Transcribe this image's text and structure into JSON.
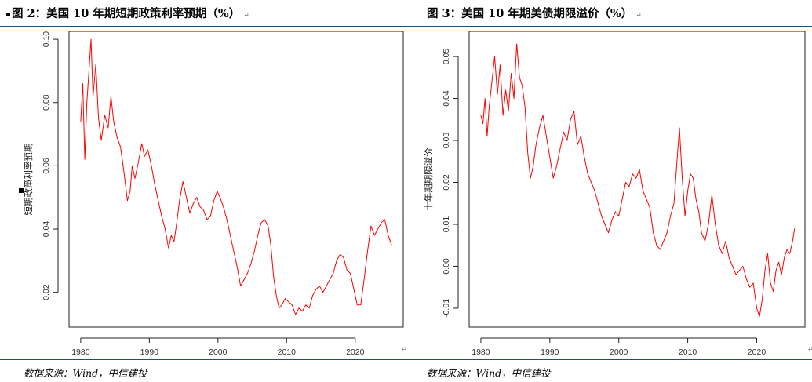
{
  "figures": [
    {
      "title": "图 2：美国 10 年期短期政策利率预期（%）",
      "source": "数据来源：Wind，中信建投",
      "ret_mark": "↵"
    },
    {
      "title": "图 3：美国 10 年期美债期限溢价（%）",
      "source": "数据来源：Wind，中信建投",
      "ret_mark": "↵"
    }
  ],
  "chart_data": [
    {
      "type": "line",
      "title": "",
      "xlabel": "",
      "ylabel": "短期政策利率预期",
      "xlim": [
        1978.3,
        2027.0
      ],
      "ylim": [
        0.009,
        0.1025
      ],
      "xticks": [
        1980,
        1990,
        2000,
        2010,
        2020
      ],
      "yticks": [
        0.02,
        0.04,
        0.06,
        0.08,
        0.1
      ],
      "ytick_labels": [
        "0.02",
        "0.04",
        "0.06",
        "0.08",
        "0.10"
      ],
      "grid": false,
      "color": "#ff0000",
      "series": [
        {
          "x": [
            1980.0,
            1980.3,
            1980.6,
            1980.9,
            1981.2,
            1981.5,
            1981.8,
            1982.2,
            1982.6,
            1983.0,
            1983.5,
            1984.0,
            1984.4,
            1984.8,
            1985.3,
            1985.8,
            1986.3,
            1986.8,
            1987.2,
            1987.5,
            1987.9,
            1988.4,
            1988.9,
            1989.3,
            1989.8,
            1990.3,
            1990.8,
            1991.3,
            1991.8,
            1992.3,
            1992.8,
            1993.2,
            1993.6,
            1994.0,
            1994.4,
            1994.9,
            1995.4,
            1995.9,
            1996.4,
            1996.9,
            1997.4,
            1997.9,
            1998.4,
            1998.9,
            1999.4,
            1999.9,
            2000.3,
            2000.8,
            2001.3,
            2001.8,
            2002.3,
            2002.8,
            2003.3,
            2003.8,
            2004.3,
            2004.8,
            2005.3,
            2005.8,
            2006.3,
            2006.8,
            2007.3,
            2007.7,
            2008.1,
            2008.5,
            2008.9,
            2009.3,
            2009.8,
            2010.3,
            2010.8,
            2011.3,
            2011.8,
            2012.3,
            2012.8,
            2013.3,
            2013.8,
            2014.3,
            2014.8,
            2015.3,
            2015.8,
            2016.3,
            2016.8,
            2017.3,
            2017.8,
            2018.3,
            2018.8,
            2019.3,
            2019.8,
            2020.3,
            2020.8,
            2021.3,
            2021.8,
            2022.3,
            2022.8,
            2023.3,
            2023.8,
            2024.3,
            2024.8,
            2025.3
          ],
          "y": [
            0.074,
            0.086,
            0.062,
            0.08,
            0.09,
            0.1,
            0.082,
            0.092,
            0.075,
            0.068,
            0.076,
            0.072,
            0.082,
            0.074,
            0.069,
            0.066,
            0.058,
            0.049,
            0.052,
            0.06,
            0.056,
            0.061,
            0.067,
            0.063,
            0.065,
            0.06,
            0.054,
            0.049,
            0.044,
            0.04,
            0.034,
            0.038,
            0.036,
            0.042,
            0.049,
            0.055,
            0.05,
            0.045,
            0.048,
            0.05,
            0.047,
            0.046,
            0.043,
            0.044,
            0.049,
            0.052,
            0.05,
            0.047,
            0.043,
            0.038,
            0.033,
            0.028,
            0.022,
            0.024,
            0.026,
            0.029,
            0.033,
            0.038,
            0.042,
            0.043,
            0.041,
            0.035,
            0.025,
            0.019,
            0.015,
            0.016,
            0.018,
            0.017,
            0.016,
            0.013,
            0.015,
            0.014,
            0.016,
            0.015,
            0.019,
            0.021,
            0.022,
            0.02,
            0.022,
            0.024,
            0.026,
            0.03,
            0.032,
            0.031,
            0.027,
            0.026,
            0.021,
            0.016,
            0.016,
            0.024,
            0.033,
            0.041,
            0.038,
            0.04,
            0.042,
            0.043,
            0.038,
            0.035
          ]
        }
      ]
    },
    {
      "type": "line",
      "title": "",
      "xlabel": "",
      "ylabel": "十年期期限溢价",
      "xlim": [
        1978.3,
        2027.0
      ],
      "ylim": [
        -0.0145,
        0.056
      ],
      "xticks": [
        1980,
        1990,
        2000,
        2010,
        2020
      ],
      "yticks": [
        -0.01,
        0.0,
        0.01,
        0.02,
        0.03,
        0.04,
        0.05
      ],
      "ytick_labels": [
        "-0.01",
        "0.00",
        "0.01",
        "0.02",
        "0.03",
        "0.04",
        "0.05"
      ],
      "grid": false,
      "color": "#ff0000",
      "series": [
        {
          "x": [
            1980.0,
            1980.3,
            1980.6,
            1980.9,
            1981.2,
            1981.6,
            1982.0,
            1982.4,
            1982.8,
            1983.2,
            1983.6,
            1984.0,
            1984.4,
            1984.8,
            1985.2,
            1985.6,
            1986.0,
            1986.4,
            1986.8,
            1987.2,
            1987.6,
            1988.0,
            1988.5,
            1989.0,
            1989.5,
            1990.0,
            1990.5,
            1991.0,
            1991.5,
            1992.0,
            1992.5,
            1993.0,
            1993.5,
            1994.0,
            1994.5,
            1995.0,
            1995.5,
            1996.0,
            1996.5,
            1997.0,
            1997.5,
            1998.0,
            1998.5,
            1999.0,
            1999.5,
            2000.0,
            2000.5,
            2001.0,
            2001.5,
            2002.0,
            2002.5,
            2003.0,
            2003.5,
            2004.0,
            2004.5,
            2005.0,
            2005.5,
            2006.0,
            2006.5,
            2007.0,
            2007.5,
            2008.0,
            2008.4,
            2008.8,
            2009.2,
            2009.6,
            2010.0,
            2010.4,
            2010.8,
            2011.2,
            2011.6,
            2012.0,
            2012.5,
            2013.0,
            2013.5,
            2014.0,
            2014.5,
            2015.0,
            2015.5,
            2016.0,
            2016.5,
            2017.0,
            2017.5,
            2018.0,
            2018.5,
            2019.0,
            2019.5,
            2020.0,
            2020.4,
            2020.8,
            2021.2,
            2021.6,
            2022.0,
            2022.4,
            2022.8,
            2023.2,
            2023.6,
            2024.0,
            2024.4,
            2024.8,
            2025.2,
            2025.5
          ],
          "y": [
            0.036,
            0.034,
            0.04,
            0.031,
            0.038,
            0.044,
            0.05,
            0.041,
            0.048,
            0.036,
            0.042,
            0.037,
            0.046,
            0.04,
            0.053,
            0.045,
            0.043,
            0.038,
            0.027,
            0.021,
            0.024,
            0.029,
            0.033,
            0.036,
            0.031,
            0.026,
            0.021,
            0.024,
            0.028,
            0.032,
            0.03,
            0.035,
            0.037,
            0.029,
            0.031,
            0.026,
            0.022,
            0.02,
            0.018,
            0.015,
            0.012,
            0.01,
            0.008,
            0.011,
            0.013,
            0.012,
            0.016,
            0.02,
            0.019,
            0.022,
            0.021,
            0.023,
            0.018,
            0.016,
            0.014,
            0.008,
            0.005,
            0.004,
            0.006,
            0.008,
            0.012,
            0.015,
            0.024,
            0.033,
            0.021,
            0.012,
            0.018,
            0.022,
            0.021,
            0.016,
            0.013,
            0.008,
            0.006,
            0.01,
            0.017,
            0.01,
            0.005,
            0.003,
            0.006,
            0.002,
            0.0,
            -0.002,
            -0.001,
            0.0,
            -0.003,
            -0.005,
            -0.004,
            -0.01,
            -0.012,
            -0.008,
            -0.001,
            0.003,
            -0.004,
            -0.006,
            -0.001,
            0.001,
            -0.002,
            0.002,
            0.004,
            0.003,
            0.006,
            0.009
          ]
        }
      ]
    }
  ]
}
